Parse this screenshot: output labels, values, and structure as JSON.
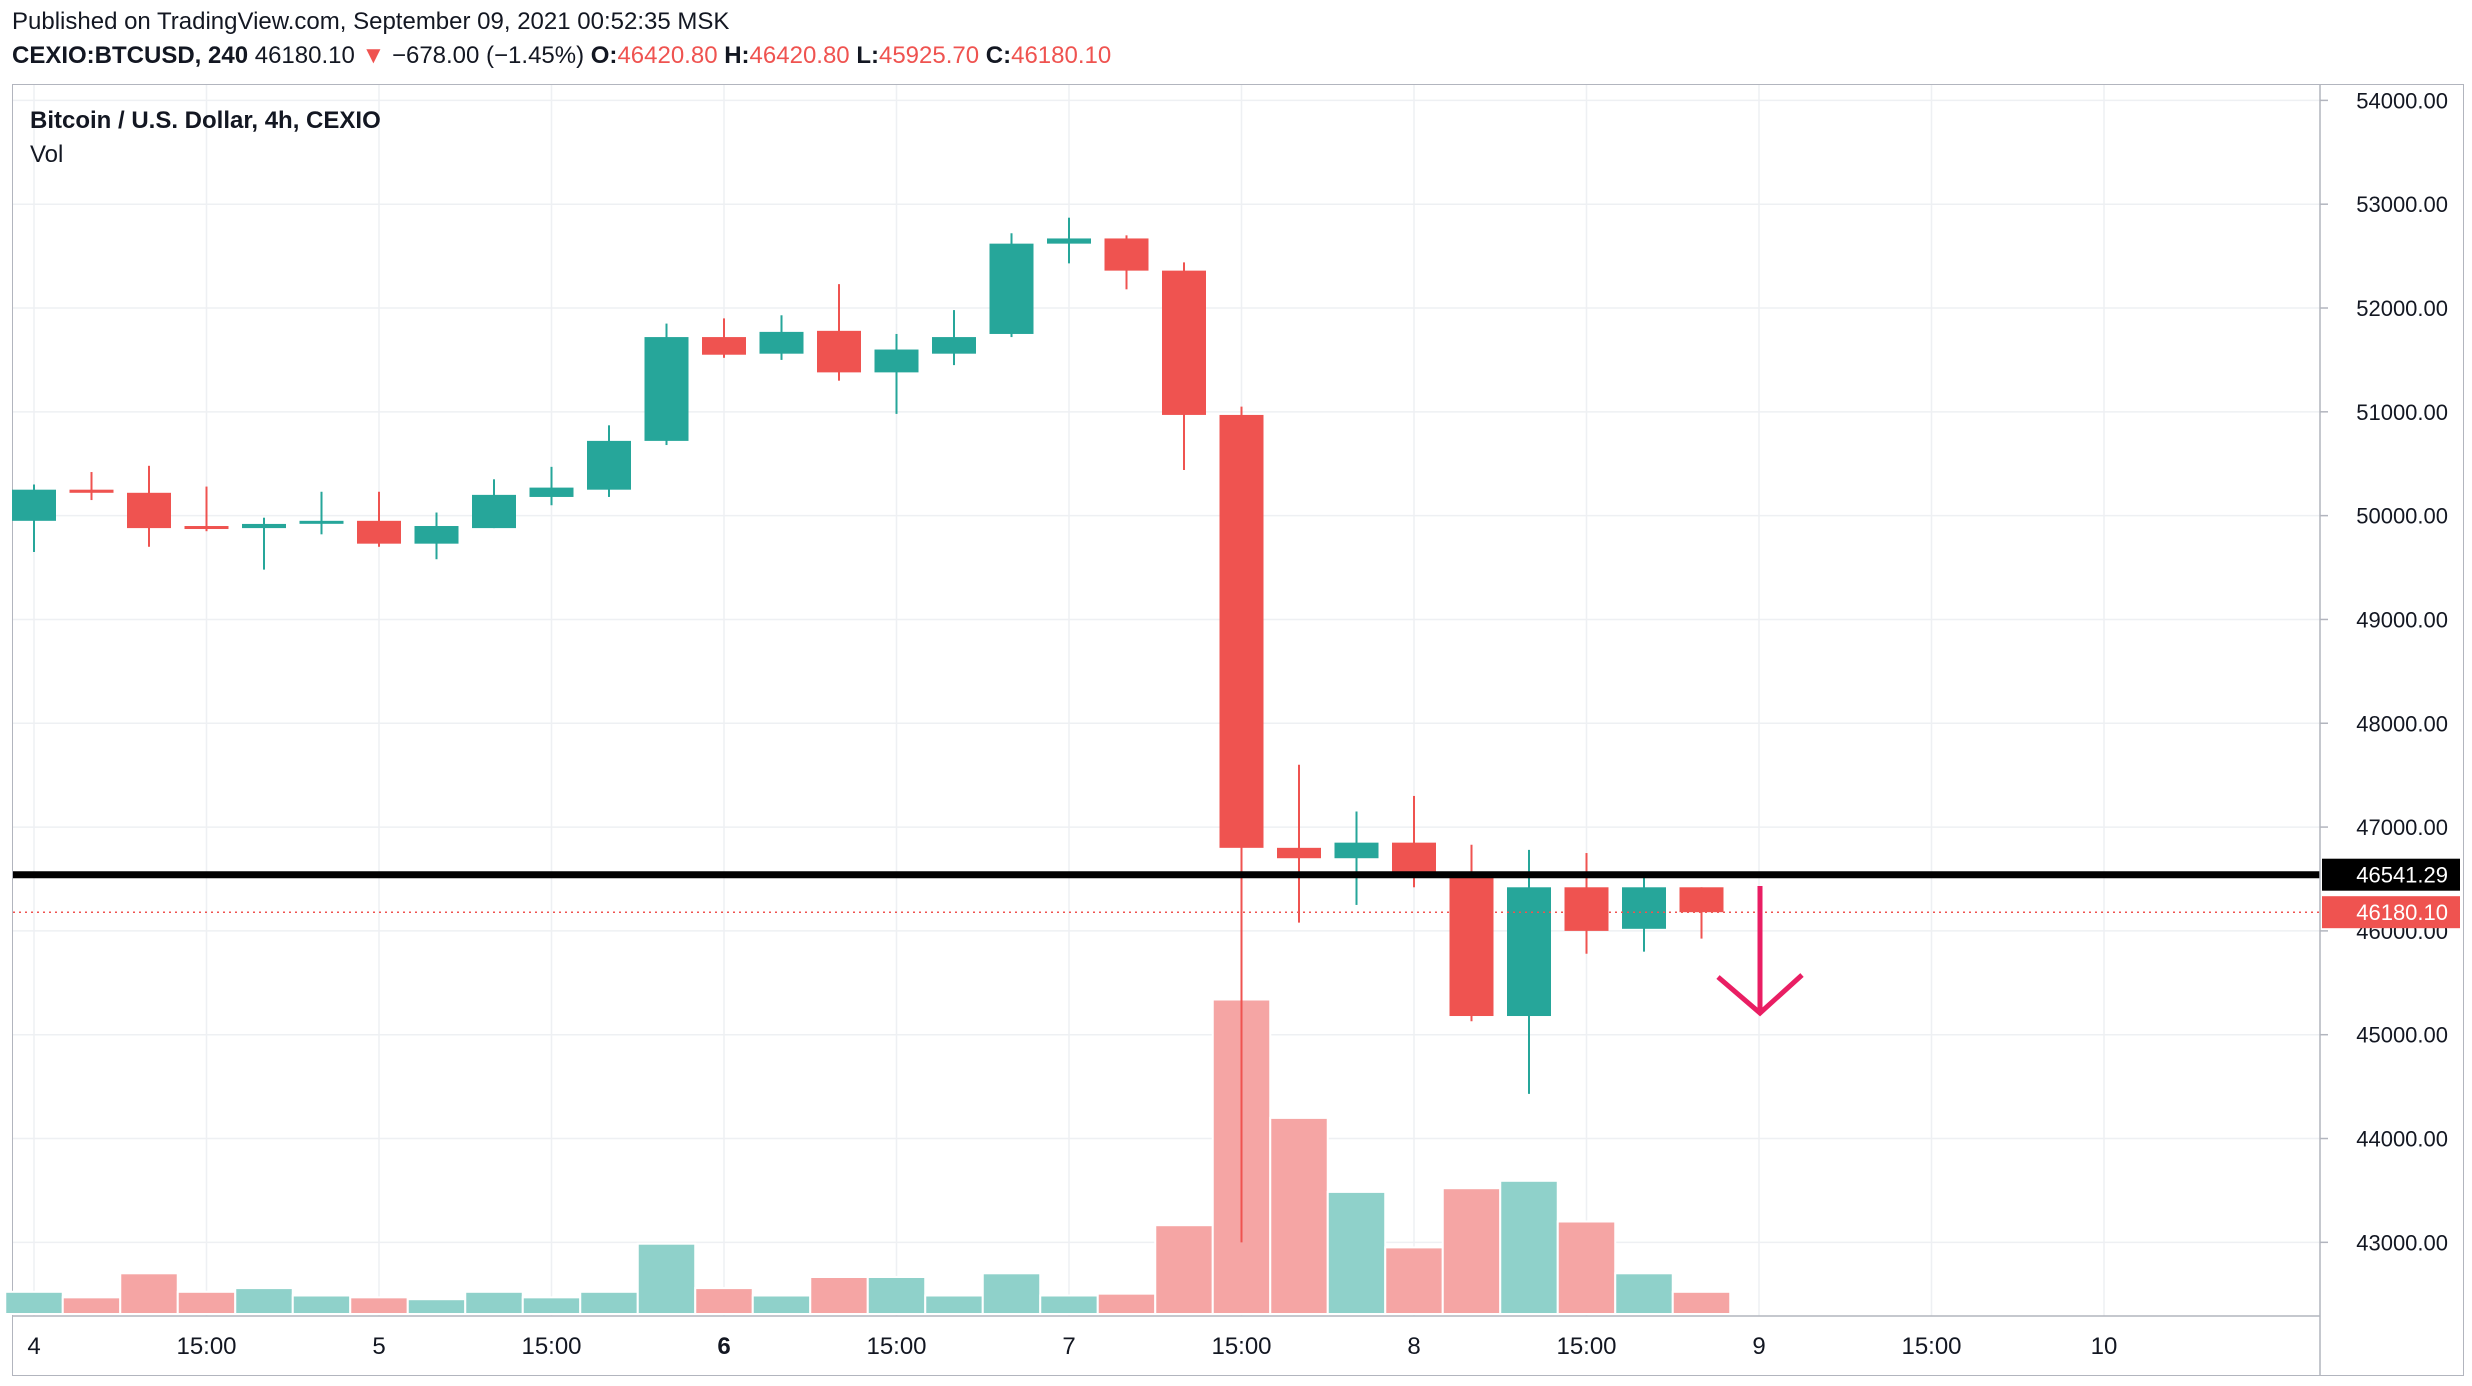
{
  "header": {
    "published": "Published on TradingView.com, September 09, 2021 00:52:35 MSK",
    "symbol": "CEXIO:BTCUSD, 240",
    "last": "46180.10",
    "arrow": "▼",
    "change": "−678.00 (−1.45%)",
    "o_label": "O:",
    "o_value": "46420.80",
    "h_label": "H:",
    "h_value": "46420.80",
    "l_label": "L:",
    "l_value": "45925.70",
    "c_label": "C:",
    "c_value": "46180.10"
  },
  "legend": {
    "title": "Bitcoin / U.S. Dollar, 4h, CEXIO",
    "vol": "Vol"
  },
  "colors": {
    "up": "#26a69a",
    "down": "#ef5350",
    "up_vol": "#8fd1ca",
    "down_vol": "#f5a5a4",
    "grid": "#eef0f3",
    "hline": "#000000",
    "arrow": "#e91e63"
  },
  "chart_data": {
    "type": "candlestick",
    "timeframe": "4h",
    "y_ticks": [
      "54000.00",
      "53000.00",
      "52000.00",
      "51000.00",
      "50000.00",
      "49000.00",
      "48000.00",
      "47000.00",
      "46000.00",
      "45000.00",
      "44000.00",
      "43000.00"
    ],
    "y_range": [
      42300,
      54100
    ],
    "x_labels": [
      {
        "text": "4",
        "bold": false,
        "slot": 0
      },
      {
        "text": "15:00",
        "bold": false,
        "slot": 3
      },
      {
        "text": "5",
        "bold": false,
        "slot": 6
      },
      {
        "text": "15:00",
        "bold": false,
        "slot": 9
      },
      {
        "text": "6",
        "bold": true,
        "slot": 12
      },
      {
        "text": "15:00",
        "bold": false,
        "slot": 15
      },
      {
        "text": "7",
        "bold": false,
        "slot": 18
      },
      {
        "text": "15:00",
        "bold": false,
        "slot": 21
      },
      {
        "text": "8",
        "bold": false,
        "slot": 24
      },
      {
        "text": "15:00",
        "bold": false,
        "slot": 27
      },
      {
        "text": "9",
        "bold": false,
        "slot": 30
      },
      {
        "text": "15:00",
        "bold": false,
        "slot": 33
      },
      {
        "text": "10",
        "bold": false,
        "slot": 36
      }
    ],
    "candles": [
      {
        "o": 49950,
        "h": 50300,
        "l": 49650,
        "c": 50250,
        "v": 12
      },
      {
        "o": 50250,
        "h": 50420,
        "l": 50150,
        "c": 50220,
        "v": 9
      },
      {
        "o": 50220,
        "h": 50480,
        "l": 49700,
        "c": 49880,
        "v": 22
      },
      {
        "o": 49900,
        "h": 50280,
        "l": 49850,
        "c": 49890,
        "v": 12
      },
      {
        "o": 49880,
        "h": 49980,
        "l": 49480,
        "c": 49920,
        "v": 14
      },
      {
        "o": 49930,
        "h": 50230,
        "l": 49820,
        "c": 49950,
        "v": 10
      },
      {
        "o": 49950,
        "h": 50230,
        "l": 49700,
        "c": 49730,
        "v": 9
      },
      {
        "o": 49730,
        "h": 50030,
        "l": 49580,
        "c": 49900,
        "v": 8
      },
      {
        "o": 49880,
        "h": 50350,
        "l": 49880,
        "c": 50200,
        "v": 12
      },
      {
        "o": 50180,
        "h": 50470,
        "l": 50100,
        "c": 50270,
        "v": 9
      },
      {
        "o": 50250,
        "h": 50870,
        "l": 50180,
        "c": 50720,
        "v": 12
      },
      {
        "o": 50720,
        "h": 51850,
        "l": 50680,
        "c": 51720,
        "v": 38
      },
      {
        "o": 51720,
        "h": 51900,
        "l": 51520,
        "c": 51550,
        "v": 14
      },
      {
        "o": 51560,
        "h": 51930,
        "l": 51500,
        "c": 51770,
        "v": 10
      },
      {
        "o": 51780,
        "h": 52230,
        "l": 51300,
        "c": 51380,
        "v": 20
      },
      {
        "o": 51380,
        "h": 51750,
        "l": 50980,
        "c": 51600,
        "v": 20
      },
      {
        "o": 51560,
        "h": 51980,
        "l": 51450,
        "c": 51720,
        "v": 10
      },
      {
        "o": 51750,
        "h": 52720,
        "l": 51720,
        "c": 52620,
        "v": 22
      },
      {
        "o": 52620,
        "h": 52870,
        "l": 52430,
        "c": 52670,
        "v": 10
      },
      {
        "o": 52670,
        "h": 52700,
        "l": 52180,
        "c": 52360,
        "v": 11
      },
      {
        "o": 52360,
        "h": 52440,
        "l": 50440,
        "c": 50970,
        "v": 48
      },
      {
        "o": 50970,
        "h": 51050,
        "l": 43000,
        "c": 46800,
        "v": 170
      },
      {
        "o": 46800,
        "h": 47600,
        "l": 46080,
        "c": 46700,
        "v": 106
      },
      {
        "o": 46700,
        "h": 47150,
        "l": 46250,
        "c": 46850,
        "v": 66
      },
      {
        "o": 46850,
        "h": 47300,
        "l": 46420,
        "c": 46520,
        "v": 36
      },
      {
        "o": 46520,
        "h": 46830,
        "l": 45130,
        "c": 45180,
        "v": 68
      },
      {
        "o": 45180,
        "h": 46780,
        "l": 44430,
        "c": 46420,
        "v": 72
      },
      {
        "o": 46420,
        "h": 46750,
        "l": 45780,
        "c": 46000,
        "v": 50
      },
      {
        "o": 46020,
        "h": 46570,
        "l": 45800,
        "c": 46420,
        "v": 22
      },
      {
        "o": 46420,
        "h": 46420,
        "l": 45925.7,
        "c": 46180.1,
        "v": 12
      }
    ],
    "horizontal_line": {
      "value": 46541.29,
      "label": "46541.29"
    },
    "last_price": {
      "value": 46180.1,
      "label": "46180.10"
    },
    "annotation": "down-arrow"
  }
}
